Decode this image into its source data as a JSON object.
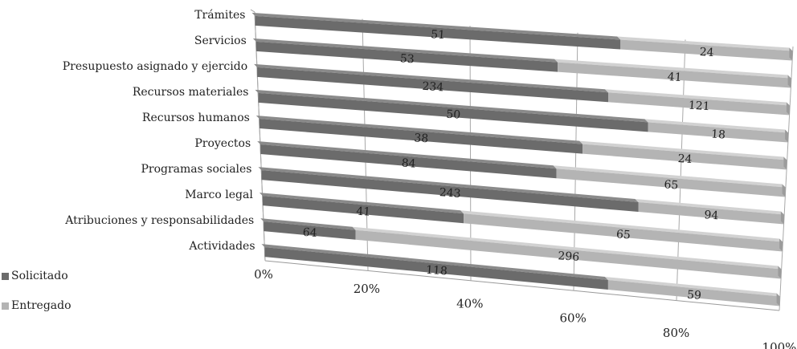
{
  "chart_data": {
    "type": "bar",
    "orientation": "horizontal",
    "stacked": "percent",
    "categories": [
      "Trámites",
      "Servicios",
      "Presupuesto asignado y ejercido",
      "Recursos materiales",
      "Recursos humanos",
      "Proyectos",
      "Programas sociales",
      "Marco legal",
      "Atribuciones y responsabilidades",
      "Actividades"
    ],
    "series": [
      {
        "name": "Solicitado",
        "color": "#6b6b6b",
        "values": [
          51,
          53,
          234,
          50,
          38,
          84,
          243,
          41,
          64,
          118
        ]
      },
      {
        "name": "Entregado",
        "color": "#b4b4b4",
        "values": [
          24,
          41,
          121,
          18,
          24,
          65,
          94,
          65,
          296,
          59
        ]
      }
    ],
    "x_ticks": [
      "0%",
      "20%",
      "40%",
      "60%",
      "80%",
      "100%"
    ],
    "xlim": [
      0,
      100
    ],
    "legend_position": "bottom-left"
  }
}
